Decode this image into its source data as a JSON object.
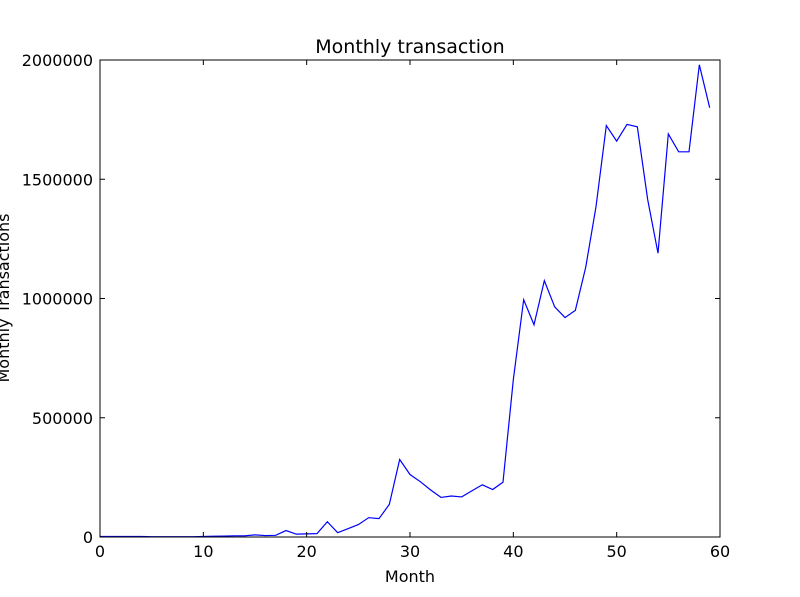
{
  "chart_data": {
    "type": "line",
    "title": "Monthly transaction",
    "xlabel": "Month",
    "ylabel": "Monthly Transactions",
    "xlim": [
      0,
      60
    ],
    "ylim": [
      0,
      2000000
    ],
    "x_ticks": [
      0,
      10,
      20,
      30,
      40,
      50,
      60
    ],
    "x_tick_labels": [
      "0",
      "10",
      "20",
      "30",
      "40",
      "50",
      "60"
    ],
    "y_ticks": [
      0,
      500000,
      1000000,
      1500000,
      2000000
    ],
    "y_tick_labels": [
      "0",
      "500000",
      "1000000",
      "1500000",
      "2000000"
    ],
    "grid": false,
    "line_color": "#0000ff",
    "series": [
      {
        "x": [
          0,
          1,
          2,
          3,
          4,
          5,
          6,
          7,
          8,
          9,
          10,
          11,
          12,
          13,
          14,
          15,
          16,
          17,
          18,
          19,
          20,
          21,
          22,
          23,
          24,
          25,
          26,
          27,
          28,
          29,
          30,
          31,
          32,
          33,
          34,
          35,
          36,
          37,
          38,
          39,
          40,
          41,
          42,
          43,
          44,
          45,
          46,
          47,
          48,
          49,
          50,
          51,
          52,
          53,
          54,
          55,
          56,
          57,
          58,
          59
        ],
        "values": [
          2000,
          2000,
          2000,
          2000,
          2000,
          1000,
          1000,
          1000,
          1000,
          1000,
          2000,
          3000,
          4000,
          5000,
          5000,
          9000,
          6000,
          7000,
          27000,
          12000,
          13000,
          14000,
          64000,
          18000,
          35000,
          52000,
          81000,
          77000,
          137000,
          325000,
          262000,
          232000,
          197000,
          166000,
          172000,
          168000,
          194000,
          219000,
          199000,
          230000,
          660000,
          995000,
          890000,
          1075000,
          965000,
          920000,
          950000,
          1130000,
          1385000,
          1725000,
          1660000,
          1730000,
          1720000,
          1415000,
          1190000,
          1690000,
          1615000,
          1615000,
          1980000,
          1800000
        ]
      }
    ]
  }
}
